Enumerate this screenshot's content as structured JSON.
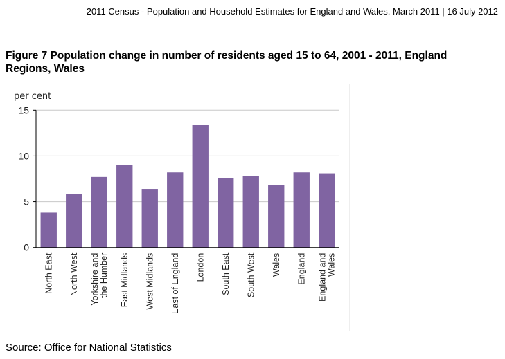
{
  "header": "2011 Census - Population and Household Estimates for England and Wales, March 2011 | 16 July 2012",
  "figure_title": "Figure 7 Population change in number of residents aged 15 to 64, 2001 - 2011, England Regions, Wales",
  "source": "Source: Office for National Statistics",
  "chart_data": {
    "type": "bar",
    "title": "Figure 7 Population change in number of residents aged 15 to 64, 2001 - 2011, England Regions, Wales",
    "ylabel": "per cent",
    "xlabel": "",
    "ylim": [
      0,
      15
    ],
    "yticks": [
      0,
      5,
      10,
      15
    ],
    "grid": true,
    "categories": [
      [
        "North East"
      ],
      [
        "North West"
      ],
      [
        "Yorkshire and",
        "the Humber"
      ],
      [
        "East Midlands"
      ],
      [
        "West Midlands"
      ],
      [
        "East of England"
      ],
      [
        "London"
      ],
      [
        "South East"
      ],
      [
        "South West"
      ],
      [
        "Wales"
      ],
      [
        "England"
      ],
      [
        "England and",
        "Wales"
      ]
    ],
    "values": [
      3.8,
      5.8,
      7.7,
      9.0,
      6.4,
      8.2,
      13.4,
      7.6,
      7.8,
      6.8,
      8.2,
      8.1
    ],
    "bar_color": "#8064a2"
  }
}
